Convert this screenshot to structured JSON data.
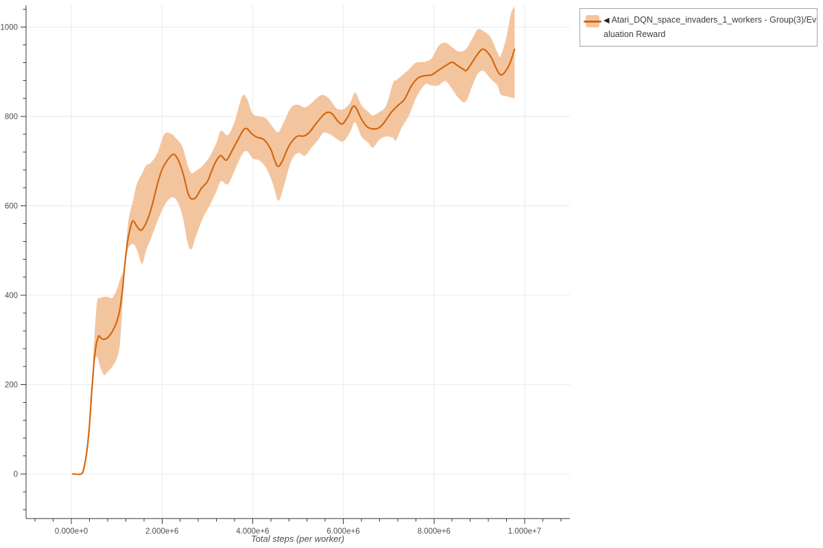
{
  "legend": {
    "collapse_marker": "◀",
    "border_color": "#a2a2a2",
    "entries": [
      {
        "label": "Atari_DQN_space_invaders_1_workers - Group(3)/Evaluation Reward",
        "label_line1": "Atari_DQN_space_invaders_1_workers - Group(3)/Ev",
        "label_line2": "aluation Reward",
        "line_color": "#d5660c",
        "band_color": "#f3c59f"
      }
    ]
  },
  "chart_data": {
    "type": "line",
    "title": "",
    "xlabel": "Total steps (per worker)",
    "ylabel": "",
    "grid": true,
    "legend_position": "top-right",
    "x_range": [
      -1000000,
      11000000
    ],
    "y_range": [
      -100,
      1045
    ],
    "x_minor_step": 400000,
    "y_minor_step": 40,
    "x_ticks": [
      {
        "v": 0,
        "label": "0.000e+0"
      },
      {
        "v": 2000000,
        "label": "2.000e+6"
      },
      {
        "v": 4000000,
        "label": "4.000e+6"
      },
      {
        "v": 6000000,
        "label": "6.000e+6"
      },
      {
        "v": 8000000,
        "label": "8.000e+6"
      },
      {
        "v": 10000000,
        "label": "1.000e+7"
      }
    ],
    "y_ticks": [
      {
        "v": 0,
        "label": "0"
      },
      {
        "v": 200,
        "label": "200"
      },
      {
        "v": 400,
        "label": "400"
      },
      {
        "v": 600,
        "label": "600"
      },
      {
        "v": 800,
        "label": "800"
      },
      {
        "v": 1000,
        "label": "1000"
      }
    ],
    "series": [
      {
        "name": "Atari_DQN_space_invaders_1_workers - Group(3)/Evaluation Reward",
        "color": "#d5660c",
        "band_color": "#f3c59f",
        "x": [
          30000,
          220000,
          280000,
          340000,
          400000,
          450000,
          500000,
          545000,
          580000,
          610000,
          660000,
          720000,
          800000,
          900000,
          1000000,
          1070000,
          1130000,
          1180000,
          1240000,
          1300000,
          1360000,
          1450000,
          1530000,
          1600000,
          1700000,
          1800000,
          1900000,
          2000000,
          2100000,
          2200000,
          2280000,
          2380000,
          2480000,
          2570000,
          2640000,
          2740000,
          2870000,
          3000000,
          3100000,
          3200000,
          3300000,
          3420000,
          3550000,
          3680000,
          3800000,
          3880000,
          3980000,
          4100000,
          4250000,
          4400000,
          4480000,
          4560000,
          4650000,
          4780000,
          4900000,
          5000000,
          5130000,
          5250000,
          5400000,
          5550000,
          5650000,
          5750000,
          5880000,
          5980000,
          6100000,
          6240000,
          6400000,
          6520000,
          6650000,
          6780000,
          6900000,
          7050000,
          7200000,
          7350000,
          7500000,
          7650000,
          7800000,
          7950000,
          8100000,
          8250000,
          8400000,
          8500000,
          8650000,
          8720000,
          8850000,
          9000000,
          9100000,
          9250000,
          9400000,
          9500000,
          9650000,
          9780000
        ],
        "y": [
          0,
          0,
          15,
          50,
          110,
          185,
          250,
          288,
          302,
          309,
          303,
          301,
          305,
          318,
          340,
          368,
          415,
          470,
          520,
          550,
          566,
          553,
          545,
          552,
          574,
          608,
          649,
          681,
          699,
          712,
          714,
          697,
          666,
          629,
          616,
          618,
          639,
          654,
          679,
          701,
          712,
          702,
          724,
          749,
          770,
          772,
          761,
          753,
          748,
          726,
          703,
          688,
          699,
          730,
          748,
          756,
          756,
          764,
          784,
          802,
          809,
          806,
          789,
          783,
          799,
          823,
          794,
          777,
          772,
          774,
          786,
          808,
          824,
          838,
          868,
          886,
          891,
          893,
          903,
          913,
          921,
          915,
          905,
          903,
          922,
          944,
          950,
          934,
          902,
          893,
          913,
          950
        ],
        "band": {
          "x": [
            480000,
            560000,
            640000,
            720000,
            800000,
            900000,
            1000000,
            1080000,
            1170000,
            1250000,
            1360000,
            1450000,
            1560000,
            1650000,
            1760000,
            1900000,
            2050000,
            2200000,
            2320000,
            2450000,
            2570000,
            2650000,
            2750000,
            2900000,
            3050000,
            3200000,
            3300000,
            3450000,
            3600000,
            3770000,
            3880000,
            4000000,
            4150000,
            4300000,
            4450000,
            4570000,
            4700000,
            4850000,
            5000000,
            5150000,
            5300000,
            5450000,
            5560000,
            5700000,
            5850000,
            6000000,
            6150000,
            6260000,
            6400000,
            6550000,
            6650000,
            6800000,
            6950000,
            7100000,
            7160000,
            7300000,
            7450000,
            7600000,
            7800000,
            7950000,
            8100000,
            8250000,
            8400000,
            8550000,
            8700000,
            8850000,
            8970000,
            9100000,
            9250000,
            9400000,
            9470000,
            9600000,
            9700000,
            9780000
          ],
          "low": [
            248,
            262,
            238,
            221,
            228,
            240,
            258,
            300,
            445,
            502,
            514,
            500,
            470,
            500,
            528,
            565,
            600,
            618,
            612,
            578,
            515,
            503,
            532,
            572,
            600,
            632,
            655,
            648,
            678,
            715,
            722,
            706,
            701,
            684,
            648,
            611,
            648,
            700,
            718,
            712,
            730,
            748,
            763,
            760,
            750,
            744,
            765,
            786,
            755,
            741,
            730,
            748,
            755,
            752,
            746,
            777,
            802,
            840,
            871,
            869,
            869,
            879,
            861,
            840,
            833,
            869,
            896,
            901,
            884,
            869,
            849,
            845,
            842,
            840
          ],
          "high": [
            256,
            380,
            393,
            396,
            396,
            394,
            412,
            438,
            465,
            560,
            612,
            650,
            672,
            690,
            697,
            718,
            760,
            761,
            750,
            732,
            690,
            673,
            678,
            690,
            710,
            740,
            768,
            758,
            788,
            845,
            838,
            806,
            800,
            795,
            775,
            765,
            790,
            820,
            826,
            820,
            830,
            844,
            848,
            838,
            818,
            816,
            830,
            853,
            825,
            810,
            802,
            810,
            825,
            876,
            880,
            892,
            905,
            920,
            922,
            930,
            957,
            965,
            955,
            945,
            950,
            975,
            995,
            990,
            977,
            943,
            935,
            978,
            1030,
            1046
          ]
        }
      }
    ]
  }
}
